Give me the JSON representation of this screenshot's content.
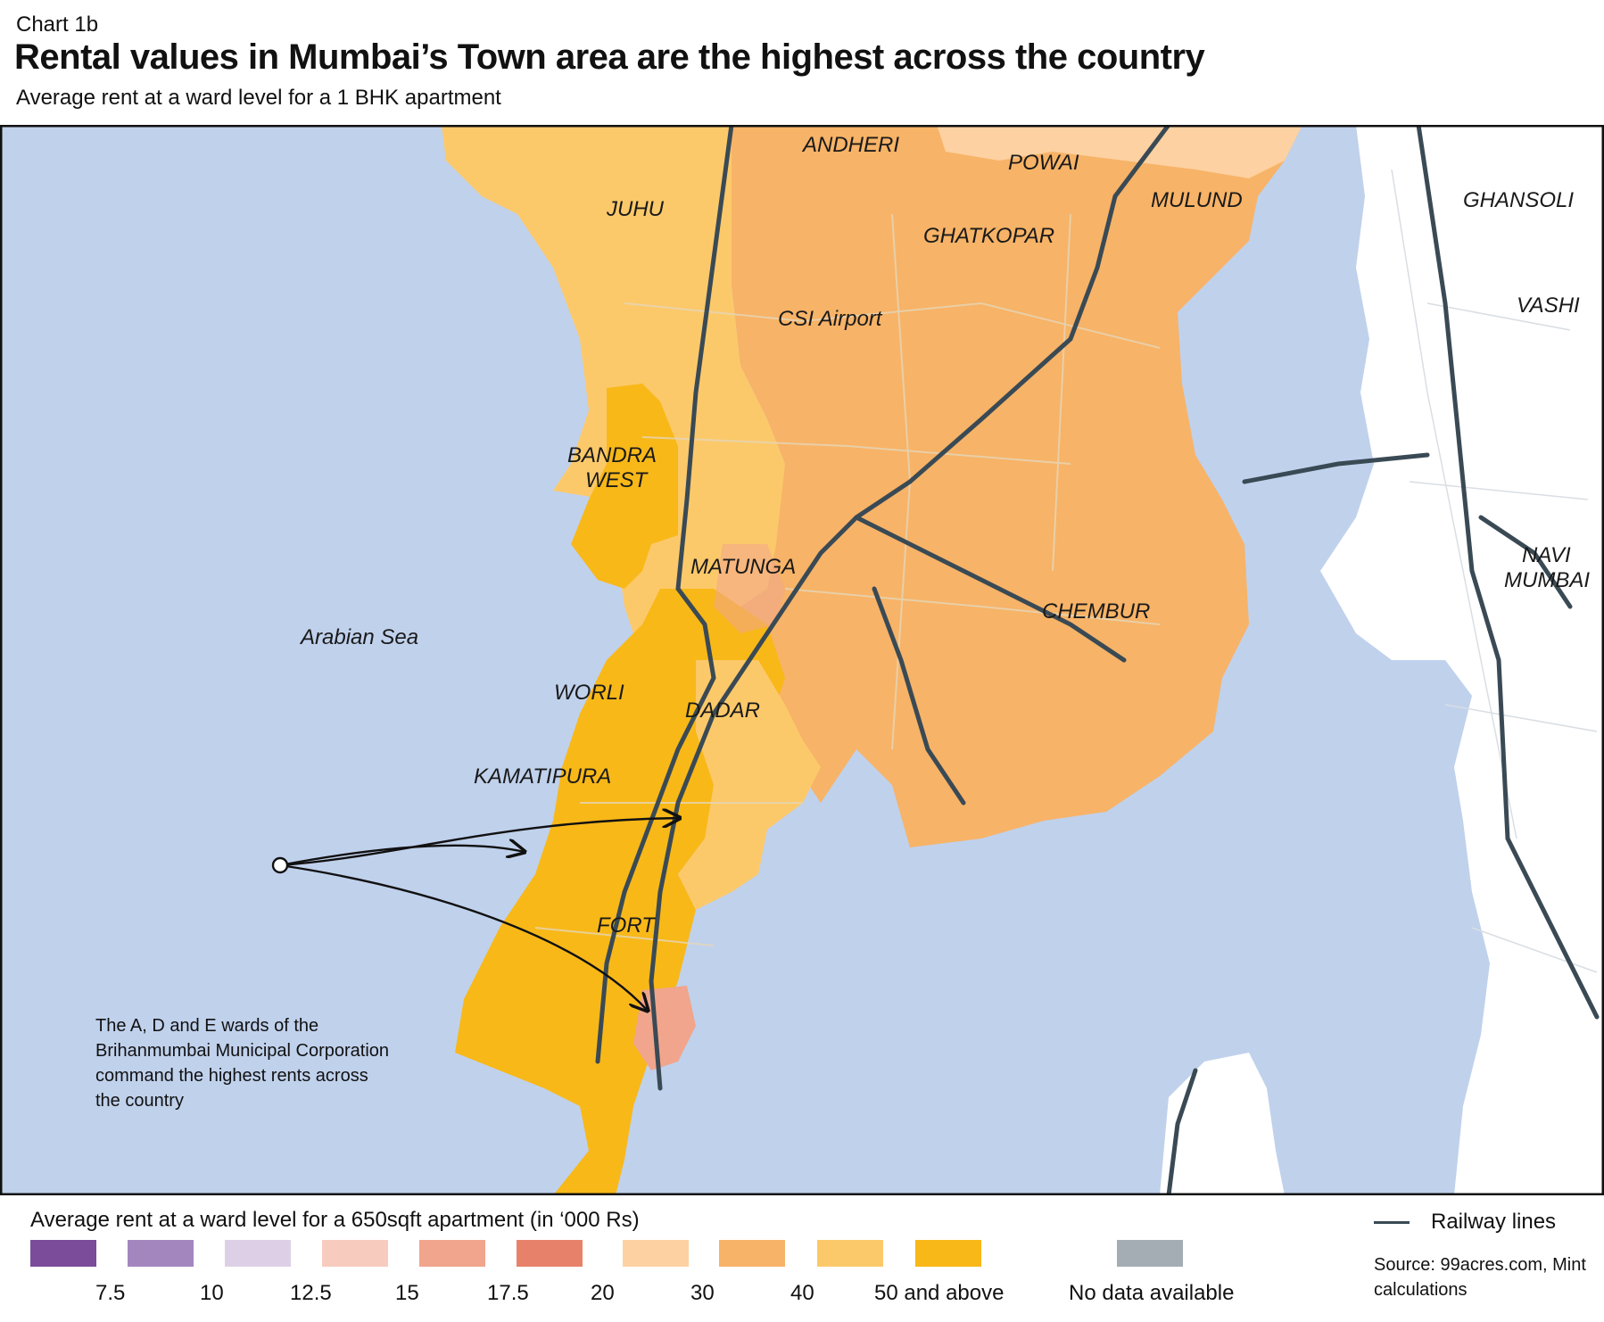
{
  "header": {
    "chart_no": "Chart 1b",
    "title": "Rental values in Mumbai’s Town area are the highest across the country",
    "subtitle": "Average rent at a ward level for a 1 BHK apartment"
  },
  "map": {
    "sea_label": "Arabian Sea",
    "places": {
      "andheri": "ANDHERI",
      "powai": "POWAI",
      "juhu": "JUHU",
      "mulund": "MULUND",
      "ghatkopar": "GHATKOPAR",
      "ghansoli": "GHANSOLI",
      "vashi": "VASHI",
      "csi_airport": "CSI Airport",
      "bandra_1": "BANDRA",
      "bandra_2": "WEST",
      "matunga": "MATUNGA",
      "navi_1": "NAVI",
      "navi_2": "MUMBAI",
      "chembur": "CHEMBUR",
      "worli": "WORLI",
      "dadar": "DADAR",
      "kamatipura": "KAMATIPURA",
      "fort": "FORT"
    },
    "annotation": "The A, D and E wards of the Brihanmumbai Municipal Corporation command the highest rents across the country",
    "colors": {
      "sea": "#c0d1ec",
      "land": "#ffffff",
      "railway": "#3a4a55",
      "roads": "#d9dee3"
    }
  },
  "legend": {
    "title": "Average rent at a ward level for a 650sqft apartment (in ‘000 Rs)",
    "items": [
      {
        "color": "#7b4c9a",
        "label": ""
      },
      {
        "color": "#a486bf",
        "label": "7.5"
      },
      {
        "color": "#ddd0e6",
        "label": "10"
      },
      {
        "color": "#f7ccbf",
        "label": "12.5"
      },
      {
        "color": "#f1a58c",
        "label": "15"
      },
      {
        "color": "#e8816a",
        "label": "17.5"
      },
      {
        "color": "#fdd1a1",
        "label": "20"
      },
      {
        "color": "#f7b367",
        "label": "30"
      },
      {
        "color": "#fcc96a",
        "label": "40"
      },
      {
        "color": "#f8b818",
        "label": "50 and above"
      }
    ],
    "no_data": {
      "color": "#a3adb3",
      "label": "No data available"
    },
    "railway_label": "Railway lines"
  },
  "source": "Source: 99acres.com, Mint calculations"
}
